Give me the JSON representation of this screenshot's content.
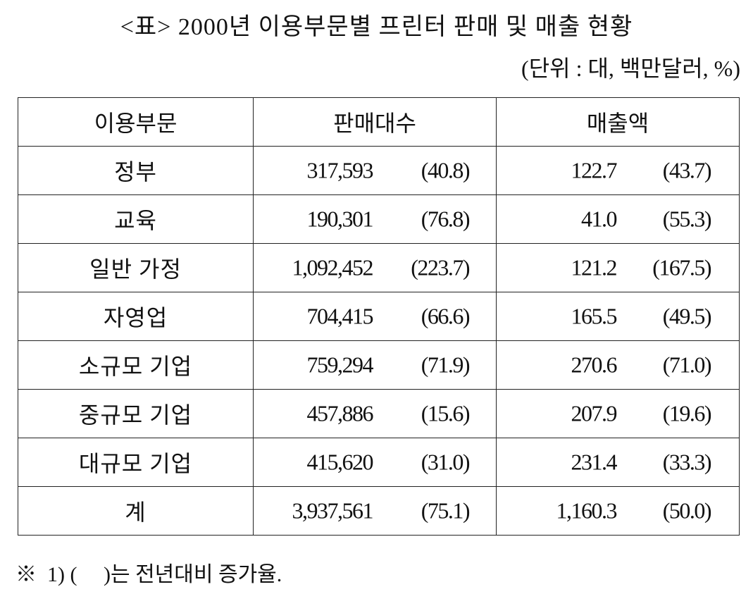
{
  "header": {
    "title": "<표> 2000년 이용부문별 프린터 판매 및 매출 현황",
    "unit": "(단위 : 대, 백만달러, %)"
  },
  "table": {
    "columns": [
      "이용부문",
      "판매대수",
      "매출액"
    ],
    "rows": [
      [
        "정부",
        "317,593",
        "(40.8)",
        "122.7",
        "(43.7)"
      ],
      [
        "교육",
        "190,301",
        "(76.8)",
        "41.0",
        "(55.3)"
      ],
      [
        "일반 가정",
        "1,092,452",
        "(223.7)",
        "121.2",
        "(167.5)"
      ],
      [
        "자영업",
        "704,415",
        "(66.6)",
        "165.5",
        "(49.5)"
      ],
      [
        "소규모 기업",
        "759,294",
        "(71.9)",
        "270.6",
        "(71.0)"
      ],
      [
        "중규모 기업",
        "457,886",
        "(15.6)",
        "207.9",
        "(19.6)"
      ],
      [
        "대규모 기업",
        "415,620",
        "(31.0)",
        "231.4",
        "(33.3)"
      ],
      [
        "계",
        "3,937,561",
        "(75.1)",
        "1,160.3",
        "(50.0)"
      ]
    ]
  },
  "footnote": "※  1) (     )는 전년대비 증가율."
}
